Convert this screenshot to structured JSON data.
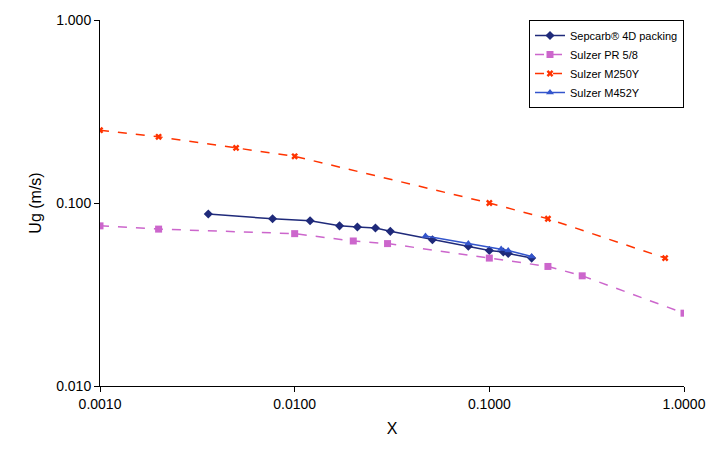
{
  "chart_data": {
    "type": "line",
    "x_label": "X",
    "y_label": "Ug (m/s)",
    "log": true,
    "grid": false,
    "legend": "upper right",
    "xlim": [
      0.001,
      1
    ],
    "ylim": [
      0.01,
      1
    ],
    "xticks": [
      {
        "value": 0.001,
        "label": "0.0010"
      },
      {
        "value": 0.01,
        "label": "0.0100"
      },
      {
        "value": 0.1,
        "label": "0.1000"
      },
      {
        "value": 1,
        "label": "1.0000"
      }
    ],
    "yticks": [
      {
        "value": 0.01,
        "label": "0.010"
      },
      {
        "value": 0.1,
        "label": "0.100"
      },
      {
        "value": 1,
        "label": "1.000"
      }
    ],
    "series": [
      {
        "name": "Sepcarb® 4D packing",
        "color": "#1f2a7a",
        "marker": "diamond",
        "line_style": "solid",
        "x": [
          0.0036,
          0.0077,
          0.012,
          0.017,
          0.021,
          0.026,
          0.031,
          0.051,
          0.078,
          0.1,
          0.118,
          0.125,
          0.165
        ],
        "values": [
          0.087,
          0.082,
          0.08,
          0.075,
          0.074,
          0.073,
          0.07,
          0.063,
          0.058,
          0.055,
          0.054,
          0.053,
          0.05
        ]
      },
      {
        "name": "Sulzer PR 5/8",
        "color": "#cc66cc",
        "marker": "square",
        "line_style": "dash",
        "x": [
          0.001,
          0.002,
          0.01,
          0.02,
          0.03,
          0.1,
          0.2,
          0.3,
          1
        ],
        "values": [
          0.075,
          0.072,
          0.068,
          0.062,
          0.06,
          0.05,
          0.045,
          0.04,
          0.025
        ]
      },
      {
        "name": "Sulzer M250Y",
        "color": "#ff3300",
        "marker": "x",
        "line_style": "dash",
        "x": [
          0.001,
          0.002,
          0.005,
          0.01,
          0.1,
          0.2,
          0.8
        ],
        "values": [
          0.25,
          0.23,
          0.2,
          0.18,
          0.1,
          0.082,
          0.05
        ]
      },
      {
        "name": "Sulzer M452Y",
        "color": "#3355cc",
        "marker": "triangle-up",
        "line_style": "solid",
        "x": [
          0.047,
          0.078,
          0.115,
          0.125,
          0.165
        ],
        "values": [
          0.066,
          0.06,
          0.056,
          0.055,
          0.051
        ]
      }
    ]
  }
}
